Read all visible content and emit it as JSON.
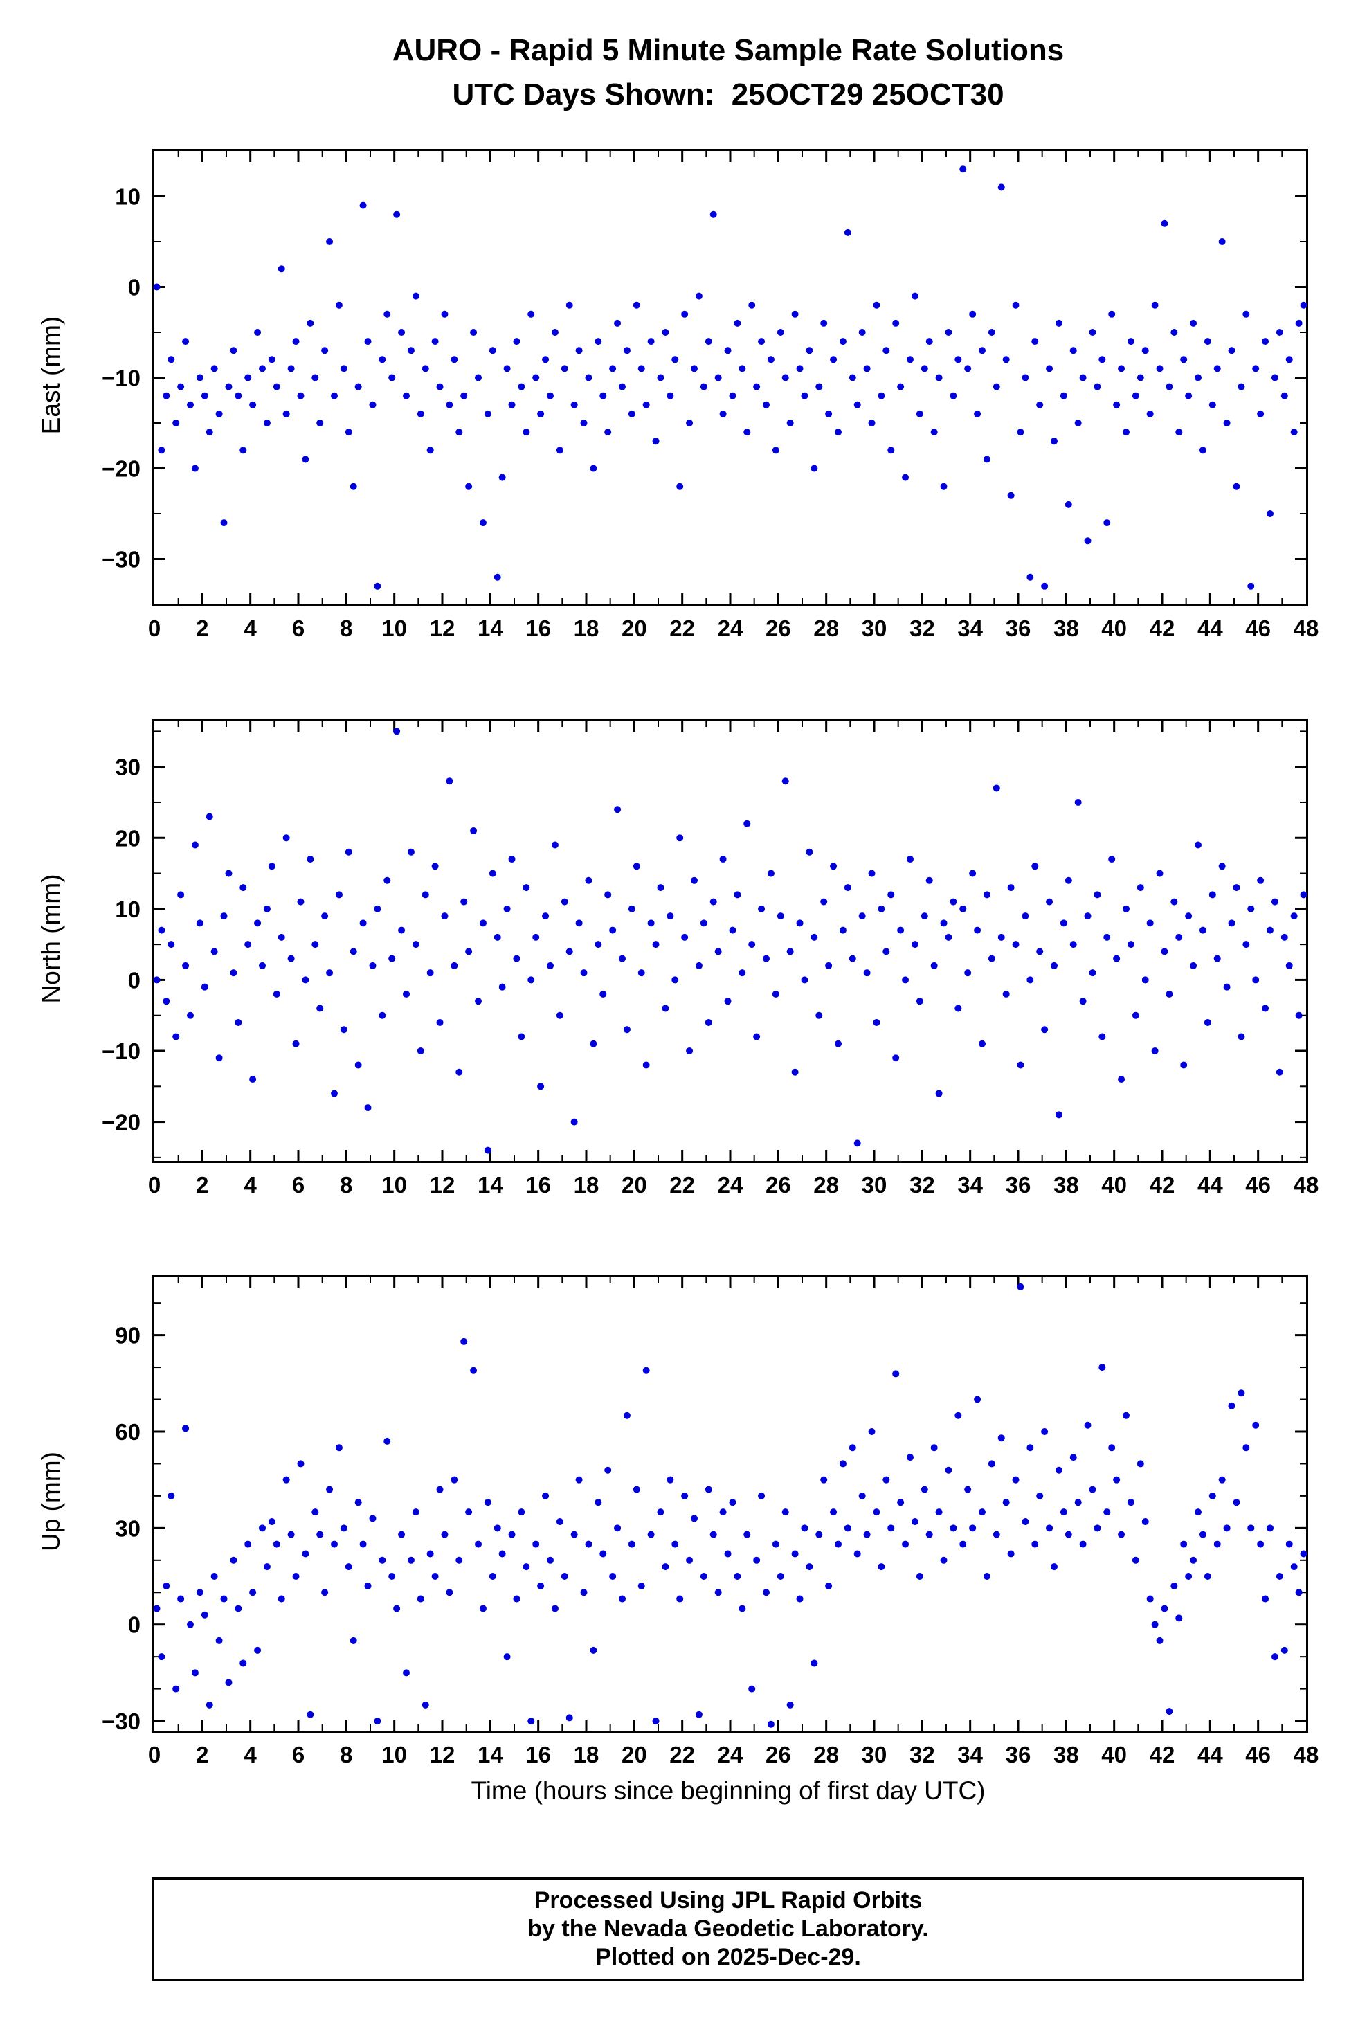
{
  "title": {
    "line1": "AURO - Rapid 5 Minute Sample Rate Solutions",
    "line2": "UTC Days Shown:  25OCT29 25OCT30"
  },
  "xaxis": {
    "label": "Time (hours since beginning of first day UTC)",
    "min": 0,
    "max": 48,
    "major_step": 2,
    "minor_step": 1
  },
  "style": {
    "dot_color": "#0000dd",
    "dot_radius": 5,
    "frame_color": "#000000"
  },
  "footer": {
    "line1": "Processed Using JPL Rapid Orbits",
    "line2": "by the Nevada Geodetic Laboratory.",
    "line3": "Plotted on 2025-Dec-29."
  },
  "chart_data": [
    {
      "type": "scatter",
      "name": "East",
      "ylabel": "East (mm)",
      "ylim": [
        -35,
        15
      ],
      "yticks": [
        10,
        0,
        -10,
        -20,
        -30
      ],
      "y_minor_step": 5,
      "x_start": 0.1,
      "x_step": 0.2,
      "y": [
        0,
        -18,
        -12,
        -8,
        -15,
        -11,
        -6,
        -13,
        -20,
        -10,
        -12,
        -16,
        -9,
        -14,
        -26,
        -11,
        -7,
        -12,
        -18,
        -10,
        -13,
        -5,
        -9,
        -15,
        -8,
        -11,
        2,
        -14,
        -9,
        -6,
        -12,
        -19,
        -4,
        -10,
        -15,
        -7,
        5,
        -12,
        -2,
        -9,
        -16,
        -22,
        -11,
        9,
        -6,
        -13,
        -33,
        -8,
        -3,
        -10,
        8,
        -5,
        -12,
        -7,
        -1,
        -14,
        -9,
        -18,
        -6,
        -11,
        -3,
        -13,
        -8,
        -16,
        -12,
        -22,
        -5,
        -10,
        -26,
        -14,
        -7,
        -32,
        -21,
        -9,
        -13,
        -6,
        -11,
        -16,
        -3,
        -10,
        -14,
        -8,
        -12,
        -5,
        -18,
        -9,
        -2,
        -13,
        -7,
        -15,
        -10,
        -20,
        -6,
        -12,
        -16,
        -9,
        -4,
        -11,
        -7,
        -14,
        -2,
        -9,
        -13,
        -6,
        -17,
        -10,
        -5,
        -12,
        -8,
        -22,
        -3,
        -15,
        -9,
        -1,
        -11,
        -6,
        8,
        -10,
        -14,
        -7,
        -12,
        -4,
        -9,
        -16,
        -2,
        -11,
        -6,
        -13,
        -8,
        -18,
        -5,
        -10,
        -15,
        -3,
        -9,
        -12,
        -7,
        -20,
        -11,
        -4,
        -14,
        -8,
        -16,
        -6,
        6,
        -10,
        -13,
        -5,
        -9,
        -15,
        -2,
        -12,
        -7,
        -18,
        -4,
        -11,
        -21,
        -8,
        -1,
        -14,
        -9,
        -6,
        -16,
        -10,
        -22,
        -5,
        -12,
        -8,
        13,
        -9,
        -3,
        -14,
        -7,
        -19,
        -5,
        -11,
        11,
        -8,
        -23,
        -2,
        -16,
        -10,
        -32,
        -6,
        -13,
        -33,
        -9,
        -17,
        -4,
        -12,
        -24,
        -7,
        -15,
        -10,
        -28,
        -5,
        -11,
        -8,
        -26,
        -3,
        -13,
        -9,
        -16,
        -6,
        -12,
        -10,
        -7,
        -14,
        -2,
        -9,
        7,
        -11,
        -5,
        -16,
        -8,
        -12,
        -4,
        -10,
        -18,
        -6,
        -13,
        -9,
        5,
        -15,
        -7,
        -22,
        -11,
        -3,
        -33,
        -9,
        -14,
        -6,
        -25,
        -10,
        -5,
        -12,
        -8,
        -16,
        -4,
        -2
      ]
    },
    {
      "type": "scatter",
      "name": "North",
      "ylabel": "North (mm)",
      "ylim": [
        -25.5,
        36.5
      ],
      "yticks": [
        30,
        20,
        10,
        0,
        -10,
        -20
      ],
      "y_minor_step": 5,
      "x_start": 0.1,
      "x_step": 0.2,
      "y": [
        0,
        7,
        -3,
        5,
        -8,
        12,
        2,
        -5,
        19,
        8,
        -1,
        23,
        4,
        -11,
        9,
        15,
        1,
        -6,
        13,
        5,
        -14,
        8,
        2,
        10,
        16,
        -2,
        6,
        20,
        3,
        -9,
        11,
        0,
        17,
        5,
        -4,
        9,
        1,
        -16,
        12,
        -7,
        18,
        4,
        -12,
        8,
        -18,
        2,
        10,
        -5,
        14,
        3,
        35,
        7,
        -2,
        18,
        5,
        -10,
        12,
        1,
        16,
        -6,
        9,
        28,
        2,
        -13,
        11,
        4,
        21,
        -3,
        8,
        -24,
        15,
        6,
        -1,
        10,
        17,
        3,
        -8,
        13,
        0,
        6,
        -15,
        9,
        2,
        19,
        -5,
        11,
        4,
        -20,
        8,
        1,
        14,
        -9,
        5,
        -2,
        12,
        7,
        24,
        3,
        -7,
        10,
        16,
        1,
        -12,
        8,
        5,
        13,
        -4,
        9,
        0,
        20,
        6,
        -10,
        14,
        2,
        8,
        -6,
        11,
        4,
        17,
        -3,
        7,
        12,
        1,
        22,
        5,
        -8,
        10,
        3,
        15,
        -2,
        9,
        28,
        4,
        -13,
        8,
        0,
        18,
        6,
        -5,
        11,
        2,
        16,
        -9,
        7,
        13,
        3,
        -23,
        9,
        1,
        15,
        -6,
        10,
        4,
        12,
        -11,
        7,
        0,
        17,
        5,
        -3,
        9,
        14,
        2,
        -16,
        8,
        6,
        11,
        -4,
        10,
        1,
        15,
        7,
        -9,
        12,
        3,
        27,
        6,
        -2,
        13,
        5,
        -12,
        9,
        0,
        16,
        4,
        -7,
        11,
        2,
        -19,
        8,
        14,
        5,
        25,
        -3,
        9,
        1,
        12,
        -8,
        6,
        17,
        3,
        -14,
        10,
        5,
        -5,
        13,
        0,
        8,
        -10,
        15,
        4,
        -2,
        11,
        6,
        -12,
        9,
        2,
        19,
        7,
        -6,
        12,
        3,
        16,
        -1,
        8,
        13,
        -8,
        5,
        10,
        0,
        14,
        -4,
        7,
        11,
        -13,
        6,
        2,
        9,
        -5,
        12
      ]
    },
    {
      "type": "scatter",
      "name": "Up",
      "ylabel": "Up (mm)",
      "ylim": [
        -33,
        108
      ],
      "yticks": [
        90,
        60,
        30,
        0,
        -30
      ],
      "y_minor_step": 10,
      "x_start": 0.1,
      "x_step": 0.2,
      "y": [
        5,
        -10,
        12,
        40,
        -20,
        8,
        61,
        0,
        -15,
        10,
        3,
        -25,
        15,
        -5,
        8,
        -18,
        20,
        5,
        -12,
        25,
        10,
        -8,
        30,
        18,
        32,
        25,
        8,
        45,
        28,
        15,
        50,
        22,
        -28,
        35,
        28,
        10,
        42,
        25,
        55,
        30,
        18,
        -5,
        38,
        25,
        12,
        33,
        -30,
        20,
        57,
        15,
        5,
        28,
        -15,
        20,
        35,
        8,
        -25,
        22,
        15,
        42,
        28,
        10,
        45,
        20,
        88,
        35,
        79,
        25,
        5,
        38,
        15,
        30,
        22,
        -10,
        28,
        8,
        35,
        18,
        -30,
        25,
        12,
        40,
        20,
        5,
        32,
        15,
        -29,
        28,
        45,
        10,
        25,
        -8,
        38,
        22,
        48,
        15,
        30,
        8,
        65,
        25,
        42,
        12,
        79,
        28,
        -30,
        35,
        18,
        45,
        25,
        8,
        40,
        20,
        33,
        -28,
        15,
        42,
        28,
        10,
        35,
        22,
        38,
        15,
        5,
        28,
        -20,
        20,
        40,
        10,
        -31,
        25,
        15,
        35,
        -25,
        22,
        8,
        30,
        18,
        -12,
        28,
        45,
        12,
        35,
        25,
        50,
        30,
        55,
        22,
        40,
        28,
        60,
        35,
        18,
        45,
        30,
        78,
        38,
        25,
        52,
        32,
        15,
        42,
        28,
        55,
        35,
        20,
        48,
        30,
        65,
        25,
        42,
        30,
        70,
        35,
        15,
        50,
        28,
        58,
        38,
        22,
        45,
        105,
        32,
        55,
        25,
        40,
        60,
        30,
        18,
        48,
        35,
        28,
        52,
        38,
        25,
        62,
        42,
        30,
        80,
        35,
        55,
        45,
        28,
        65,
        38,
        20,
        50,
        32,
        8,
        0,
        -5,
        5,
        -27,
        12,
        2,
        25,
        15,
        20,
        35,
        28,
        15,
        40,
        25,
        45,
        30,
        68,
        38,
        72,
        55,
        30,
        62,
        25,
        8,
        30,
        -10,
        15,
        -8,
        25,
        18,
        10,
        22
      ]
    }
  ]
}
